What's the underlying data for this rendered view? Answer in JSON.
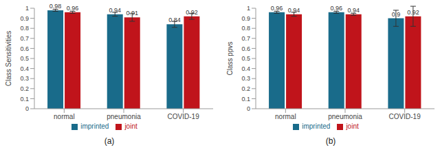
{
  "chart_data": [
    {
      "type": "bar",
      "caption": "(a)",
      "y_label": "Class Sensitivities",
      "categories": [
        "normal",
        "pneumonia",
        "COVID-19"
      ],
      "series": [
        {
          "name": "imprinted",
          "color": "#196b8a",
          "values": [
            0.98,
            0.94,
            0.84
          ],
          "errors": [
            0.01,
            0.02,
            0.03
          ]
        },
        {
          "name": "joint",
          "color": "#c0141b",
          "values": [
            0.96,
            0.91,
            0.92
          ],
          "errors": [
            0.01,
            0.04,
            0.03
          ]
        }
      ],
      "ylim": [
        0,
        1
      ],
      "yticks": [
        0,
        0.1,
        0.2,
        0.3,
        0.4,
        0.5,
        0.6,
        0.7,
        0.8,
        0.9,
        1
      ],
      "grid": false,
      "legend": "bottom",
      "data_labels": true
    },
    {
      "type": "bar",
      "caption": "(b)",
      "y_label": "Class ppvs",
      "categories": [
        "normal",
        "pneumonia",
        "COVID-19"
      ],
      "series": [
        {
          "name": "imprinted",
          "color": "#196b8a",
          "values": [
            0.96,
            0.96,
            0.9
          ],
          "errors": [
            0.01,
            0.01,
            0.08
          ]
        },
        {
          "name": "joint",
          "color": "#c0141b",
          "values": [
            0.94,
            0.94,
            0.92
          ],
          "errors": [
            0.02,
            0.01,
            0.1
          ]
        }
      ],
      "ylim": [
        0,
        1
      ],
      "yticks": [
        0,
        0.1,
        0.2,
        0.3,
        0.4,
        0.5,
        0.6,
        0.7,
        0.8,
        0.9,
        1
      ],
      "grid": false,
      "legend": "bottom",
      "data_labels": true
    }
  ]
}
